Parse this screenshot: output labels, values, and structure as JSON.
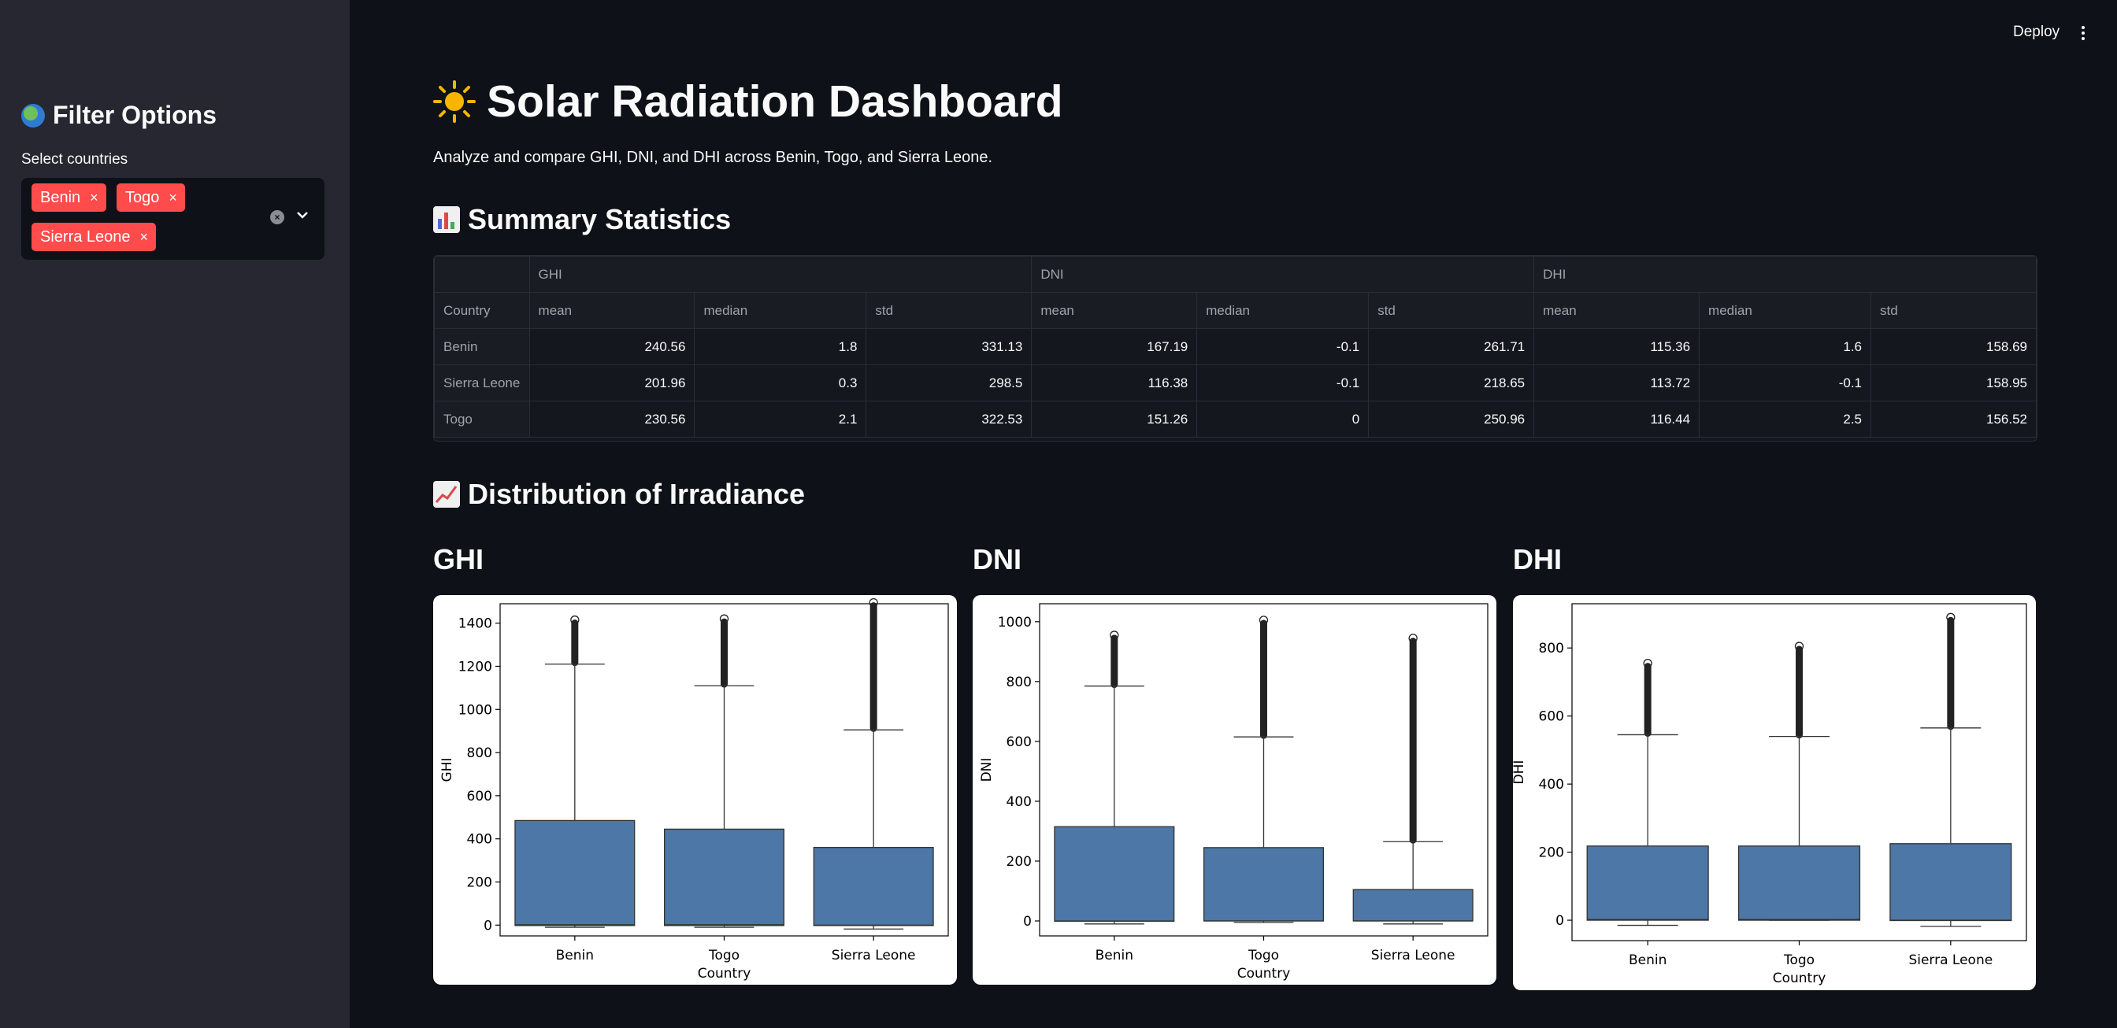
{
  "header": {
    "deploy_label": "Deploy"
  },
  "sidebar": {
    "title": "Filter Options",
    "select_label": "Select countries",
    "selected": [
      "Benin",
      "Togo",
      "Sierra Leone"
    ],
    "remove_symbol": "×"
  },
  "main": {
    "title": "Solar Radiation Dashboard",
    "subtitle": "Analyze and compare GHI, DNI, and DHI across Benin, Togo, and Sierra Leone.",
    "summary_heading": "Summary Statistics",
    "distribution_heading": "Distribution of Irradiance"
  },
  "table": {
    "group_headers": [
      "GHI",
      "DNI",
      "DHI"
    ],
    "index_header": "Country",
    "sub_headers": [
      "mean",
      "median",
      "std",
      "mean",
      "median",
      "std",
      "mean",
      "median",
      "std"
    ],
    "rows": [
      {
        "country": "Benin",
        "values": [
          "240.56",
          "1.8",
          "331.13",
          "167.19",
          "-0.1",
          "261.71",
          "115.36",
          "1.6",
          "158.69"
        ]
      },
      {
        "country": "Sierra Leone",
        "values": [
          "201.96",
          "0.3",
          "298.5",
          "116.38",
          "-0.1",
          "218.65",
          "113.72",
          "-0.1",
          "158.95"
        ]
      },
      {
        "country": "Togo",
        "values": [
          "230.56",
          "2.1",
          "322.53",
          "151.26",
          "0",
          "250.96",
          "116.44",
          "2.5",
          "156.52"
        ]
      }
    ]
  },
  "chart_data": [
    {
      "type": "box",
      "title": "GHI",
      "xlabel": "Country",
      "ylabel": "GHI",
      "categories": [
        "Benin",
        "Togo",
        "Sierra Leone"
      ],
      "yticks": [
        0,
        200,
        400,
        600,
        800,
        1000,
        1200,
        1400
      ],
      "ylim": [
        -50,
        1490
      ],
      "box_color": "#4c77a6",
      "boxes": [
        {
          "whisker_low": -10,
          "q1": -2,
          "median": 2,
          "q3": 485,
          "whisker_high": 1210,
          "outlier_max": 1415
        },
        {
          "whisker_low": -10,
          "q1": -2,
          "median": 2,
          "q3": 445,
          "whisker_high": 1110,
          "outlier_max": 1420
        },
        {
          "whisker_low": -18,
          "q1": -2,
          "median": 0,
          "q3": 360,
          "whisker_high": 905,
          "outlier_max": 1495
        }
      ]
    },
    {
      "type": "box",
      "title": "DNI",
      "xlabel": "Country",
      "ylabel": "DNI",
      "categories": [
        "Benin",
        "Togo",
        "Sierra Leone"
      ],
      "yticks": [
        0,
        200,
        400,
        600,
        800,
        1000
      ],
      "ylim": [
        -50,
        1060
      ],
      "box_color": "#4c77a6",
      "boxes": [
        {
          "whisker_low": -10,
          "q1": -1,
          "median": 0,
          "q3": 315,
          "whisker_high": 785,
          "outlier_max": 955
        },
        {
          "whisker_low": -5,
          "q1": 0,
          "median": 0,
          "q3": 245,
          "whisker_high": 615,
          "outlier_max": 1005
        },
        {
          "whisker_low": -10,
          "q1": 0,
          "median": 0,
          "q3": 105,
          "whisker_high": 265,
          "outlier_max": 945
        }
      ]
    },
    {
      "type": "box",
      "title": "DHI",
      "xlabel": "Country",
      "ylabel": "DHI",
      "categories": [
        "Benin",
        "Togo",
        "Sierra Leone"
      ],
      "yticks": [
        0,
        200,
        400,
        600,
        800
      ],
      "ylim": [
        -60,
        930
      ],
      "box_color": "#4c77a6",
      "boxes": [
        {
          "whisker_low": -15,
          "q1": 0,
          "median": 2,
          "q3": 218,
          "whisker_high": 545,
          "outlier_max": 755
        },
        {
          "whisker_low": 0,
          "q1": 0,
          "median": 2,
          "q3": 218,
          "whisker_high": 540,
          "outlier_max": 805
        },
        {
          "whisker_low": -18,
          "q1": -1,
          "median": 0,
          "q3": 225,
          "whisker_high": 565,
          "outlier_max": 890
        }
      ]
    }
  ]
}
